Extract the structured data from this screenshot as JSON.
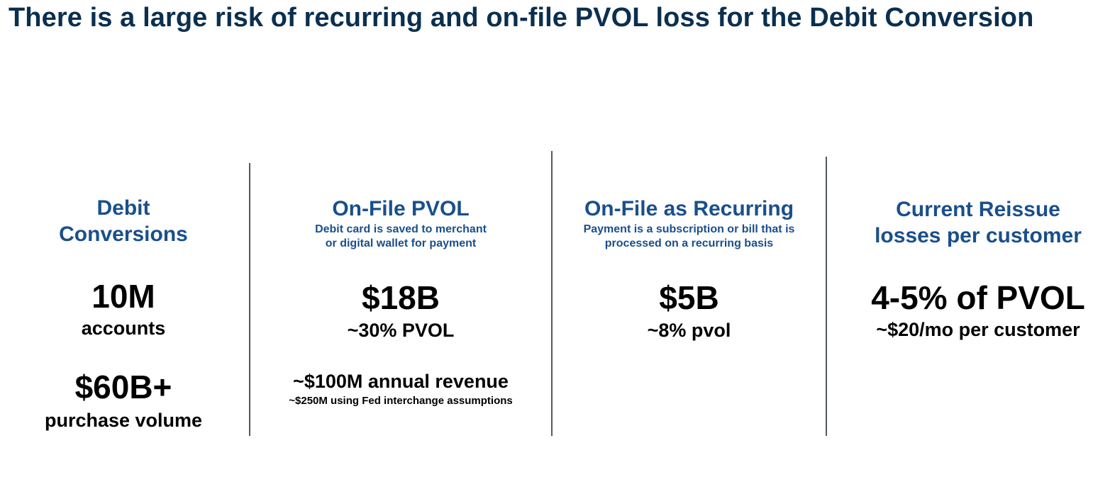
{
  "title": "There is a large risk of recurring and on-file PVOL loss for the Debit Conversion",
  "colors": {
    "title": "#0b2f4f",
    "heading": "#1a4f8c",
    "divider": "#4f5a63"
  },
  "columns": [
    {
      "heading_line1": "Debit",
      "heading_line2": "Conversions",
      "stat1_value": "10M",
      "stat1_label": "accounts",
      "stat2_value": "$60B+",
      "stat2_label": "purchase volume"
    },
    {
      "heading": "On-File PVOL",
      "desc_line1": "Debit card is saved to merchant",
      "desc_line2": "or digital wallet for payment",
      "stat_value": "$18B",
      "stat_label": "~30% PVOL",
      "revenue": "~$100M annual revenue",
      "revenue_note": "~$250M using Fed interchange assumptions"
    },
    {
      "heading": "On-File as Recurring",
      "desc_line1": "Payment is a subscription or bill that is",
      "desc_line2": "processed on a recurring basis",
      "stat_value": "$5B",
      "stat_label": "~8% pvol"
    },
    {
      "heading_line1": "Current Reissue",
      "heading_line2": "losses per customer",
      "stat_value": "4-5% of PVOL",
      "stat_label": "~$20/mo per customer"
    }
  ]
}
